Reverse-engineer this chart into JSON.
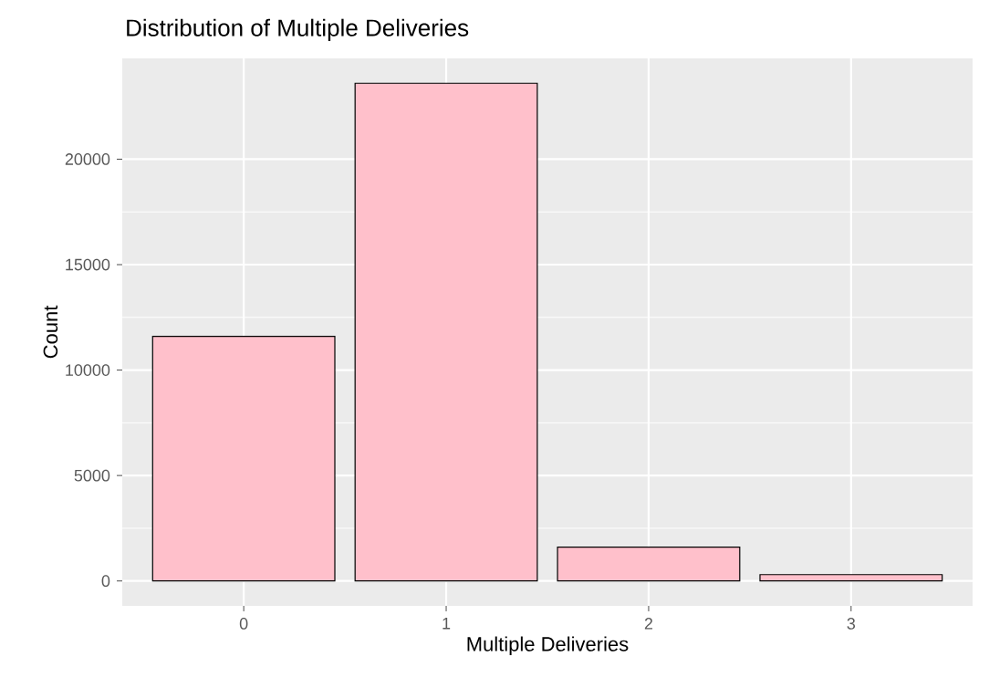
{
  "chart_data": {
    "type": "bar",
    "title": "Distribution of Multiple Deliveries",
    "xlabel": "Multiple Deliveries",
    "ylabel": "Count",
    "categories": [
      "0",
      "1",
      "2",
      "3"
    ],
    "values": [
      11600,
      23600,
      1600,
      300
    ],
    "color": "#ffc0cb",
    "ylim": [
      -1180,
      24780
    ],
    "yticks": [
      0,
      5000,
      10000,
      15000,
      20000
    ],
    "grid": true
  }
}
